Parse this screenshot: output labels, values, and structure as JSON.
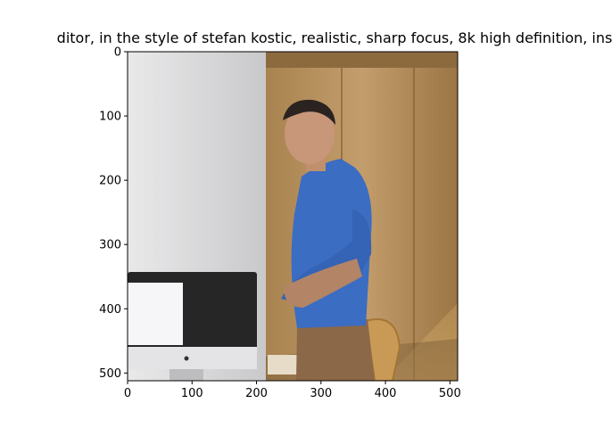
{
  "chart_data": {
    "type": "image",
    "title": "ditor,  in the style of stefan kostic, realistic, sharp focus, 8k high definition, ins",
    "x_ticks": [
      0,
      100,
      200,
      300,
      400,
      500
    ],
    "y_ticks": [
      0,
      100,
      200,
      300,
      400,
      500
    ],
    "xlim": [
      0,
      512
    ],
    "ylim": [
      512,
      0
    ],
    "image_content": "photo of a man in a blue shirt and brown trousers standing beside a desktop computer monitor, wooden wall panels, wicker chair",
    "colors": {
      "wall_left": "#d8d8d8",
      "wood_panel": "#b8956a",
      "shirt": "#3a6cc0",
      "pants": "#8a6a48",
      "monitor_bezel": "#2a2a2a",
      "monitor_stand": "#c8c8c8"
    }
  }
}
